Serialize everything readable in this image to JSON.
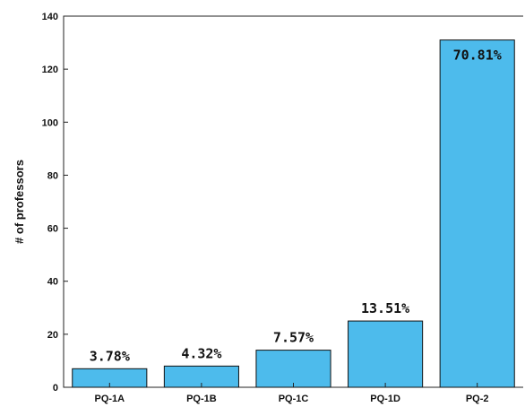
{
  "chart_data": {
    "type": "bar",
    "categories": [
      "PQ-1A",
      "PQ-1B",
      "PQ-1C",
      "PQ-1D",
      "PQ-2"
    ],
    "values": [
      7,
      8,
      14,
      25,
      131
    ],
    "data_labels": [
      "3.78%",
      "4.32%",
      "7.57%",
      "13.51%",
      "70.81%"
    ],
    "ylabel": "# of professors",
    "ylim": [
      0,
      140
    ],
    "yticks": [
      0,
      20,
      40,
      60,
      80,
      100,
      120,
      140
    ],
    "bar_color": "#4dbbec",
    "grid": false
  }
}
